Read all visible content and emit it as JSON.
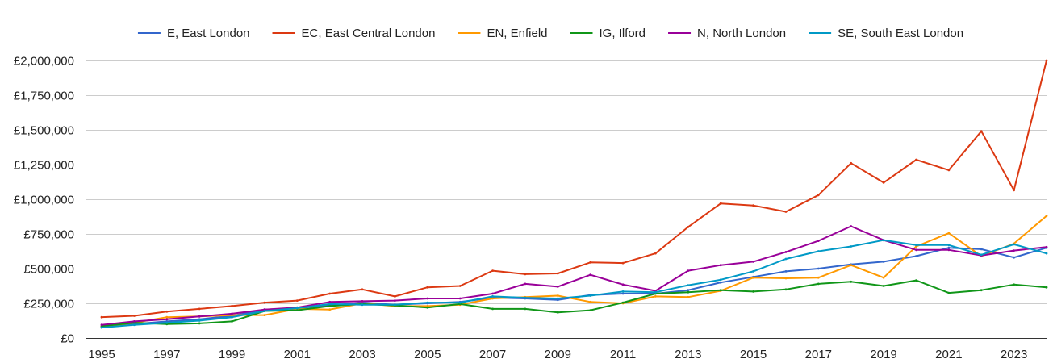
{
  "chart_data": {
    "type": "line",
    "title": "",
    "xlabel": "",
    "ylabel": "",
    "x": [
      1995,
      1996,
      1997,
      1998,
      1999,
      2000,
      2001,
      2002,
      2003,
      2004,
      2005,
      2006,
      2007,
      2008,
      2009,
      2010,
      2011,
      2012,
      2013,
      2014,
      2015,
      2016,
      2017,
      2018,
      2019,
      2020,
      2021,
      2022,
      2023,
      2024
    ],
    "xticks": [
      "1995",
      "1997",
      "1999",
      "2001",
      "2003",
      "2005",
      "2007",
      "2009",
      "2011",
      "2013",
      "2015",
      "2017",
      "2019",
      "2021",
      "2023"
    ],
    "xtick_values": [
      1995,
      1997,
      1999,
      2001,
      2003,
      2005,
      2007,
      2009,
      2011,
      2013,
      2015,
      2017,
      2019,
      2021,
      2023
    ],
    "xlim": [
      1995,
      2024
    ],
    "ylim": [
      0,
      2000000
    ],
    "yticks": [
      "£0",
      "£250,000",
      "£500,000",
      "£750,000",
      "£1,000,000",
      "£1,250,000",
      "£1,500,000",
      "£1,750,000",
      "£2,000,000"
    ],
    "ytick_values": [
      0,
      250000,
      500000,
      750000,
      1000000,
      1250000,
      1500000,
      1750000,
      2000000
    ],
    "grid": true,
    "legend_position": "top",
    "series": [
      {
        "name": "E, East London",
        "color": "#3366cc",
        "values": [
          80000,
          100000,
          120000,
          135000,
          160000,
          205000,
          215000,
          235000,
          255000,
          240000,
          250000,
          260000,
          290000,
          285000,
          275000,
          310000,
          320000,
          320000,
          345000,
          400000,
          440000,
          480000,
          500000,
          530000,
          550000,
          590000,
          650000,
          640000,
          580000,
          650000
        ]
      },
      {
        "name": "EC, East Central London",
        "color": "#dc3912",
        "values": [
          150000,
          160000,
          190000,
          210000,
          230000,
          255000,
          270000,
          320000,
          350000,
          300000,
          365000,
          375000,
          485000,
          460000,
          465000,
          545000,
          540000,
          610000,
          800000,
          970000,
          955000,
          910000,
          1030000,
          1260000,
          1120000,
          1285000,
          1210000,
          1490000,
          1065000,
          2000000
        ]
      },
      {
        "name": "EN, Enfield",
        "color": "#ff9900",
        "values": [
          80000,
          110000,
          150000,
          155000,
          165000,
          165000,
          210000,
          205000,
          250000,
          230000,
          230000,
          240000,
          285000,
          295000,
          305000,
          260000,
          250000,
          300000,
          295000,
          340000,
          435000,
          430000,
          435000,
          525000,
          435000,
          660000,
          755000,
          590000,
          680000,
          880000
        ]
      },
      {
        "name": "IG, Ilford",
        "color": "#109618",
        "values": [
          85000,
          110000,
          100000,
          105000,
          120000,
          195000,
          200000,
          230000,
          245000,
          235000,
          220000,
          245000,
          210000,
          210000,
          185000,
          200000,
          255000,
          320000,
          330000,
          345000,
          335000,
          350000,
          390000,
          405000,
          375000,
          415000,
          325000,
          345000,
          385000,
          365000
        ]
      },
      {
        "name": "N, North London",
        "color": "#990099",
        "values": [
          95000,
          120000,
          135000,
          155000,
          175000,
          205000,
          220000,
          260000,
          265000,
          270000,
          285000,
          285000,
          320000,
          390000,
          370000,
          455000,
          385000,
          340000,
          485000,
          525000,
          550000,
          620000,
          700000,
          805000,
          705000,
          635000,
          635000,
          595000,
          630000,
          655000
        ]
      },
      {
        "name": "SE, South East London",
        "color": "#0099c6",
        "values": [
          75000,
          95000,
          110000,
          125000,
          150000,
          195000,
          215000,
          245000,
          240000,
          240000,
          255000,
          255000,
          300000,
          290000,
          285000,
          305000,
          335000,
          330000,
          380000,
          420000,
          480000,
          570000,
          625000,
          660000,
          705000,
          670000,
          670000,
          600000,
          675000,
          610000
        ]
      }
    ]
  }
}
